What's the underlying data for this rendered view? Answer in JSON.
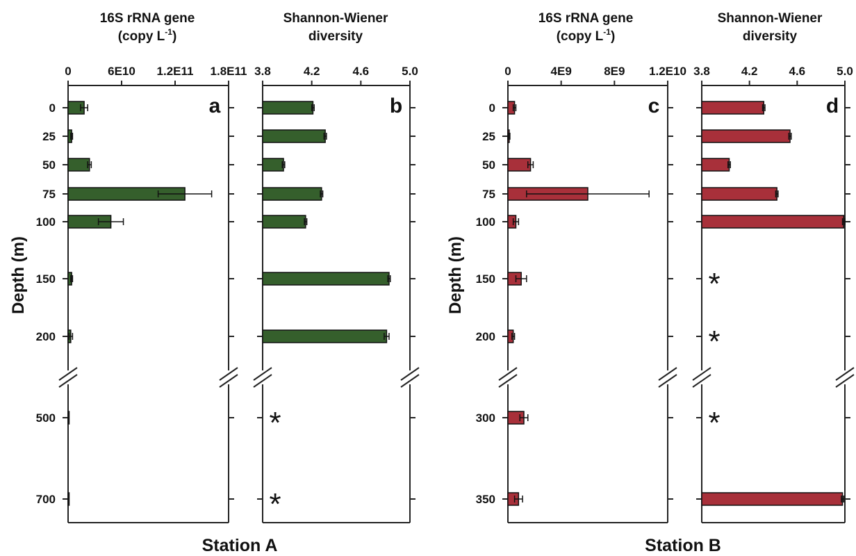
{
  "figure": {
    "depth_axis_label": "Depth (m)",
    "bar_color_A": "#355f2c",
    "bar_color_B": "#a8303a"
  },
  "chart_data": [
    {
      "type": "bar",
      "panel": "a",
      "orientation": "horizontal",
      "station": "Station A",
      "xlabel": "16S rRNA gene",
      "xlabel_unit": "(copy L",
      "xlabel_unit_sup": "-1",
      "xlabel_unit_end": ")",
      "ylabel": "Depth (m)",
      "xlim": [
        0,
        180000000000
      ],
      "x_ticks": [
        "0",
        "6E10",
        "1.2E11",
        "1.8E11"
      ],
      "x_tick_values": [
        0,
        60000000000,
        120000000000,
        180000000000
      ],
      "categories": [
        "0",
        "25",
        "50",
        "75",
        "100",
        "150",
        "200",
        "500",
        "700"
      ],
      "values": [
        18000000000,
        4000000000,
        24000000000,
        131000000000,
        48000000000,
        4000000000,
        3000000000,
        1000000000,
        1000000000
      ],
      "errors": [
        4000000000,
        1000000000,
        2000000000,
        30000000000,
        14000000000,
        1000000000,
        2000000000,
        0,
        0
      ],
      "axis_break_after": "200"
    },
    {
      "type": "bar",
      "panel": "b",
      "orientation": "horizontal",
      "station": "Station A",
      "xlabel": "Shannon-Wiener",
      "xlabel_line2": "diversity",
      "xlim": [
        3.8,
        5.0
      ],
      "x_ticks": [
        "3.8",
        "4.2",
        "4.6",
        "5.0"
      ],
      "x_tick_values": [
        3.8,
        4.2,
        4.6,
        5.0
      ],
      "categories": [
        "0",
        "25",
        "50",
        "75",
        "100",
        "150",
        "200",
        "500",
        "700"
      ],
      "values": [
        4.21,
        4.31,
        3.97,
        4.28,
        4.15,
        4.83,
        4.81,
        null,
        null
      ],
      "errors": [
        0.01,
        0.01,
        0.01,
        0.01,
        0.01,
        0.01,
        0.02,
        0,
        0
      ],
      "missing_marker": "*",
      "axis_break_after": "200"
    },
    {
      "type": "bar",
      "panel": "c",
      "orientation": "horizontal",
      "station": "Station B",
      "xlabel": "16S rRNA gene",
      "xlabel_unit": "(copy L",
      "xlabel_unit_sup": "-1",
      "xlabel_unit_end": ")",
      "ylabel": "Depth (m)",
      "xlim": [
        0,
        12000000000
      ],
      "x_ticks": [
        "0",
        "4E9",
        "8E9",
        "1.2E10"
      ],
      "x_tick_values": [
        0,
        4000000000,
        8000000000,
        12000000000
      ],
      "categories": [
        "0",
        "25",
        "50",
        "75",
        "100",
        "150",
        "200",
        "300",
        "350"
      ],
      "values": [
        500000000,
        100000000,
        1700000000,
        6000000000,
        600000000,
        1000000000,
        400000000,
        1200000000,
        800000000
      ],
      "errors": [
        100000000,
        50000000,
        200000000,
        4600000000,
        200000000,
        400000000,
        100000000,
        300000000,
        300000000
      ],
      "axis_break_after": "200"
    },
    {
      "type": "bar",
      "panel": "d",
      "orientation": "horizontal",
      "station": "Station B",
      "xlabel": "Shannon-Wiener",
      "xlabel_line2": "diversity",
      "xlim": [
        3.8,
        5.0
      ],
      "x_ticks": [
        "3.8",
        "4.2",
        "4.6",
        "5.0"
      ],
      "x_tick_values": [
        3.8,
        4.2,
        4.6,
        5.0
      ],
      "categories": [
        "0",
        "25",
        "50",
        "75",
        "100",
        "150",
        "200",
        "300",
        "350"
      ],
      "values": [
        4.32,
        4.54,
        4.03,
        4.43,
        4.99,
        null,
        null,
        null,
        4.98
      ],
      "errors": [
        0.01,
        0.01,
        0.01,
        0.01,
        0.01,
        0,
        0,
        0,
        0.01
      ],
      "missing_marker": "*",
      "axis_break_after": "200"
    }
  ]
}
